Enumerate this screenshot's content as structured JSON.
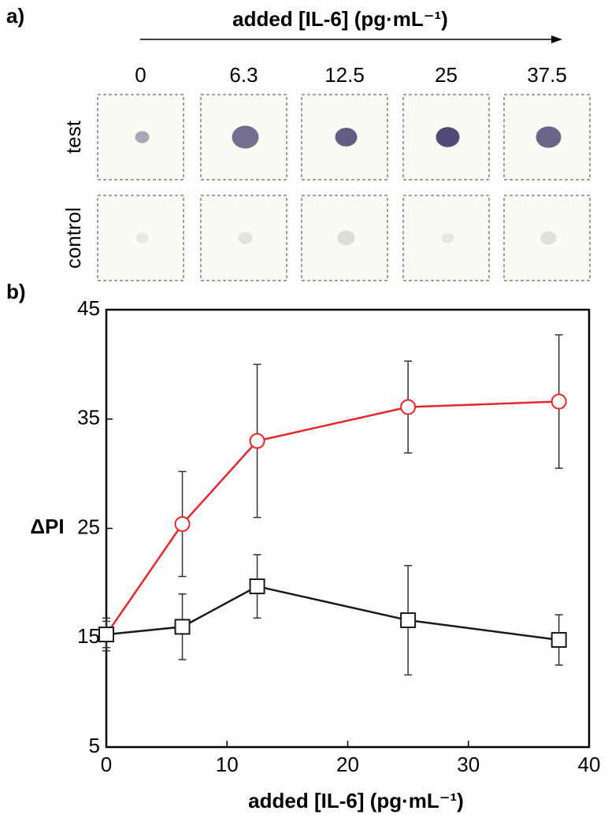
{
  "panel_a": {
    "label": "a)",
    "title": "added [IL-6] (pg·mL⁻¹)",
    "columns": [
      "0",
      "6.3",
      "12.5",
      "25",
      "37.5"
    ],
    "rows": [
      "test",
      "control"
    ]
  },
  "chart_data": {
    "type": "line",
    "label": "b)",
    "x_label": "added [IL-6] (pg·mL⁻¹)",
    "y_label": "ΔPI",
    "x": [
      0,
      6.3,
      12.5,
      25,
      37.5
    ],
    "series": [
      {
        "name": "test",
        "color": "#e8262c",
        "marker": "circle",
        "values": [
          15.3,
          25.4,
          33,
          36.1,
          36.6
        ],
        "errors": [
          1.2,
          4.8,
          7,
          4.2,
          6.1
        ]
      },
      {
        "name": "control",
        "color": "#1a1a1a",
        "marker": "square",
        "values": [
          15.3,
          16,
          19.7,
          16.6,
          14.8
        ],
        "errors": [
          1.5,
          3,
          2.9,
          5,
          2.3
        ]
      }
    ],
    "xlim": [
      0,
      40
    ],
    "xticks": [
      0,
      10,
      20,
      30,
      40
    ],
    "ylim": [
      5,
      45
    ],
    "yticks": [
      5,
      15,
      25,
      35,
      45
    ]
  }
}
